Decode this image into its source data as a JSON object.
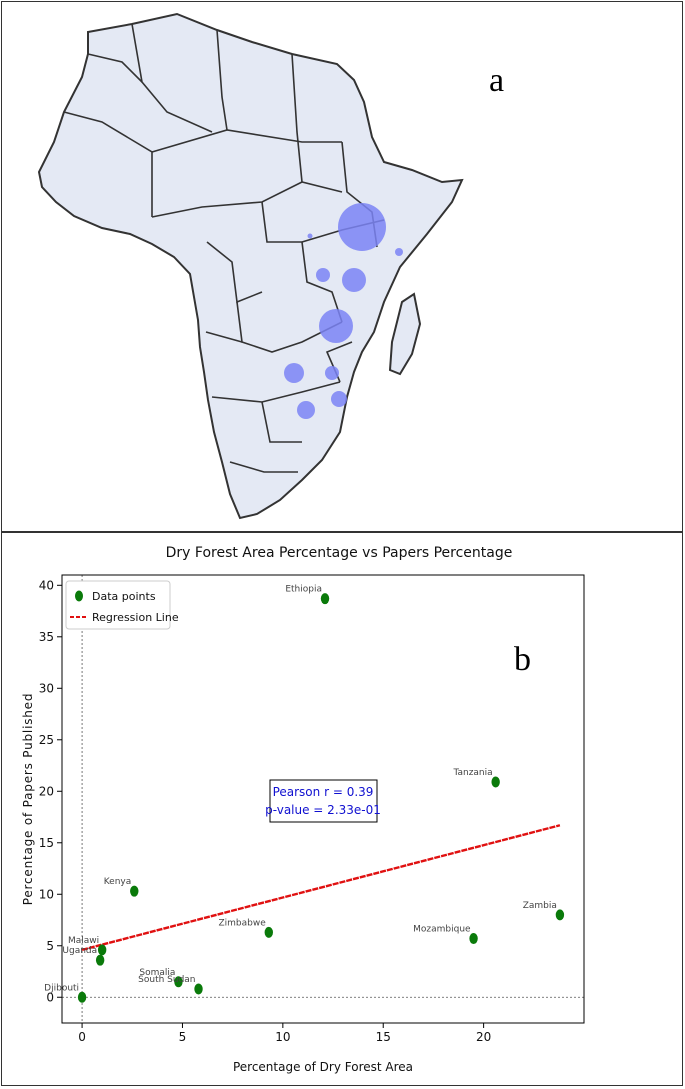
{
  "panel_a": {
    "letter": "a",
    "bubble_color": "#7b84f5",
    "land_color": "#e4e9f4",
    "border_color": "#333333"
  },
  "panel_b": {
    "letter": "b"
  },
  "chart_data": {
    "type": "scatter",
    "title": "Dry Forest Area Percentage vs Papers Percentage",
    "xlabel": "Percentage of Dry Forest Area",
    "ylabel": "Percentage of Papers Published",
    "xlim": [
      -1,
      25
    ],
    "ylim": [
      -2.5,
      41
    ],
    "xticks": [
      0,
      5,
      10,
      15,
      20
    ],
    "yticks": [
      0,
      5,
      10,
      15,
      20,
      25,
      30,
      35,
      40
    ],
    "legend": {
      "placement": "top-left",
      "entries": [
        "Data points",
        "Regression Line"
      ]
    },
    "points": [
      {
        "label": "Ethiopia",
        "x": 12.1,
        "y": 38.7
      },
      {
        "label": "Tanzania",
        "x": 20.6,
        "y": 20.9
      },
      {
        "label": "Kenya",
        "x": 2.6,
        "y": 10.3
      },
      {
        "label": "Zambia",
        "x": 23.8,
        "y": 8.0
      },
      {
        "label": "Zimbabwe",
        "x": 9.3,
        "y": 6.3
      },
      {
        "label": "Mozambique",
        "x": 19.5,
        "y": 5.7
      },
      {
        "label": "Malawi",
        "x": 1.0,
        "y": 4.6
      },
      {
        "label": "Uganda",
        "x": 0.9,
        "y": 3.6
      },
      {
        "label": "Somalia",
        "x": 4.8,
        "y": 1.5
      },
      {
        "label": "South Sudan",
        "x": 5.8,
        "y": 0.8
      },
      {
        "label": "Djibouti",
        "x": 0.0,
        "y": 0.0
      }
    ],
    "regression": {
      "x": [
        0,
        23.8
      ],
      "y": [
        4.6,
        16.7
      ]
    },
    "stats": {
      "line1": "Pearson r = 0.39",
      "line2": "p-value = 2.33e-01"
    },
    "colors": {
      "points": "#0a7a0a",
      "regression": "#e01010",
      "stats_text": "#1010d0"
    }
  }
}
